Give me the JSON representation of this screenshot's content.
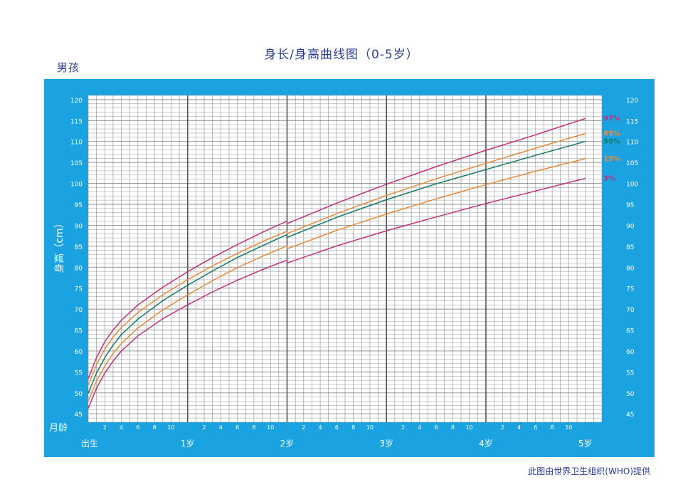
{
  "page": {
    "title": "身长/身高曲线图（0-5岁）",
    "gender": "男孩",
    "source": "此图由世界卫生组织(WHO)提供"
  },
  "colors": {
    "frame": "#1aa3e0",
    "plot_bg": "#ffffff",
    "grid": "#8c8c8c",
    "year_line": "#555555",
    "p97": "#c0307a",
    "p85": "#e88a3a",
    "p50": "#127a66",
    "p15": "#e88a3a",
    "p3": "#c0307a"
  },
  "chart_data": {
    "type": "line",
    "title": "身长/身高曲线图（0-5岁）",
    "ylabel": "身高（cm）",
    "xlabel": "月龄",
    "ylim": [
      43,
      121
    ],
    "xlim": [
      0,
      62
    ],
    "y_ticks": [
      45,
      50,
      55,
      60,
      65,
      70,
      75,
      80,
      85,
      90,
      95,
      100,
      105,
      110,
      115,
      120
    ],
    "x_minor_tick_labels": [
      "2",
      "4",
      "6",
      "8",
      "10"
    ],
    "x_year_labels": [
      "出生",
      "1岁",
      "2岁",
      "3岁",
      "4岁",
      "5岁"
    ],
    "grid": true,
    "legend": "right, end of each curve",
    "series": [
      {
        "name": "97%",
        "color": "#c0307a",
        "x": [
          0,
          1,
          2,
          3,
          4,
          6,
          9,
          12,
          15,
          18,
          21,
          24,
          24,
          30,
          36,
          42,
          48,
          54,
          60
        ],
        "y": [
          53.4,
          58.4,
          62.2,
          65.0,
          67.3,
          71.0,
          75.2,
          78.9,
          82.3,
          85.4,
          88.3,
          91.0,
          90.4,
          95.3,
          99.8,
          104.0,
          107.9,
          111.6,
          115.5
        ]
      },
      {
        "name": "85%",
        "color": "#e88a3a",
        "x": [
          0,
          1,
          2,
          3,
          4,
          6,
          9,
          12,
          15,
          18,
          21,
          24,
          24,
          30,
          36,
          42,
          48,
          54,
          60
        ],
        "y": [
          51.8,
          56.7,
          60.5,
          63.3,
          65.6,
          69.2,
          73.4,
          77.0,
          80.3,
          83.3,
          86.1,
          88.6,
          88.0,
          92.8,
          97.1,
          101.1,
          104.8,
          108.4,
          111.9
        ]
      },
      {
        "name": "50%",
        "color": "#127a66",
        "x": [
          0,
          1,
          2,
          3,
          4,
          6,
          9,
          12,
          15,
          18,
          21,
          24,
          24,
          30,
          36,
          42,
          48,
          54,
          60
        ],
        "y": [
          49.9,
          54.7,
          58.4,
          61.4,
          63.9,
          67.6,
          72.0,
          75.7,
          79.1,
          82.3,
          85.1,
          87.8,
          87.1,
          91.9,
          96.1,
          99.9,
          103.3,
          106.7,
          110.0
        ]
      },
      {
        "name": "15%",
        "color": "#e88a3a",
        "x": [
          0,
          1,
          2,
          3,
          4,
          6,
          9,
          12,
          15,
          18,
          21,
          24,
          24,
          30,
          36,
          42,
          48,
          54,
          60
        ],
        "y": [
          48.0,
          52.8,
          56.4,
          59.4,
          61.8,
          65.5,
          69.8,
          73.4,
          76.8,
          79.9,
          82.6,
          85.1,
          84.4,
          88.8,
          92.7,
          96.3,
          99.7,
          102.9,
          105.9
        ]
      },
      {
        "name": "3%",
        "color": "#c0307a",
        "x": [
          0,
          1,
          2,
          3,
          4,
          6,
          9,
          12,
          15,
          18,
          21,
          24,
          24,
          30,
          36,
          42,
          48,
          54,
          60
        ],
        "y": [
          46.3,
          51.1,
          54.7,
          57.6,
          60.0,
          63.6,
          67.7,
          71.0,
          74.1,
          76.9,
          79.4,
          81.7,
          81.0,
          85.1,
          88.7,
          92.0,
          95.2,
          98.2,
          101.2
        ]
      }
    ]
  }
}
